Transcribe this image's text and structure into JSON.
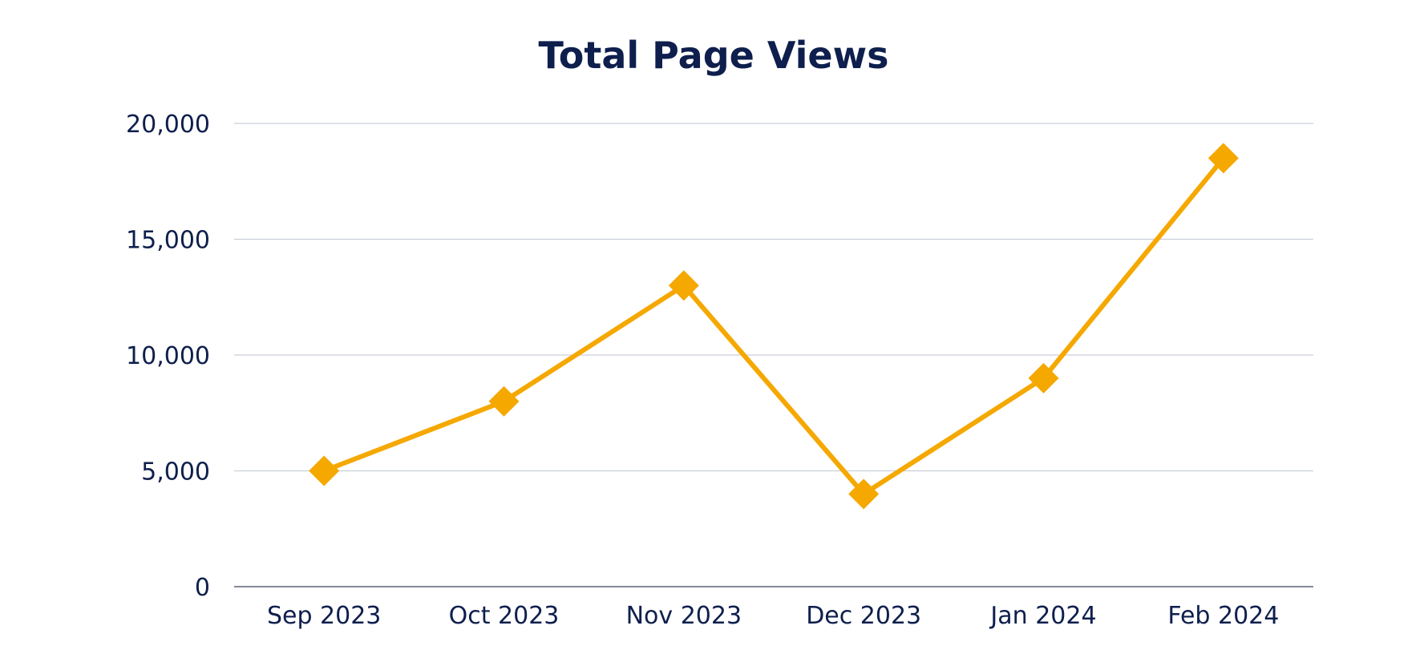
{
  "chart_data": {
    "type": "line",
    "title": "Total Page Views",
    "xlabel": "",
    "ylabel": "",
    "categories": [
      "Sep 2023",
      "Oct 2023",
      "Nov 2023",
      "Dec 2023",
      "Jan 2024",
      "Feb 2024"
    ],
    "series": [
      {
        "values": [
          5000,
          8000,
          13000,
          4000,
          9000,
          18500
        ],
        "marker": "diamond"
      }
    ],
    "ylim": [
      0,
      20000
    ],
    "yticks": [
      0,
      5000,
      10000,
      15000,
      20000
    ],
    "ytick_labels": [
      "0",
      "5,000",
      "10,000",
      "15,000",
      "20,000"
    ],
    "grid": true,
    "legend": "none",
    "colors": {
      "line": "#F5A800",
      "text": "#0E1F4D",
      "grid": "#C9CFDA",
      "axis": "#5A6478"
    }
  }
}
